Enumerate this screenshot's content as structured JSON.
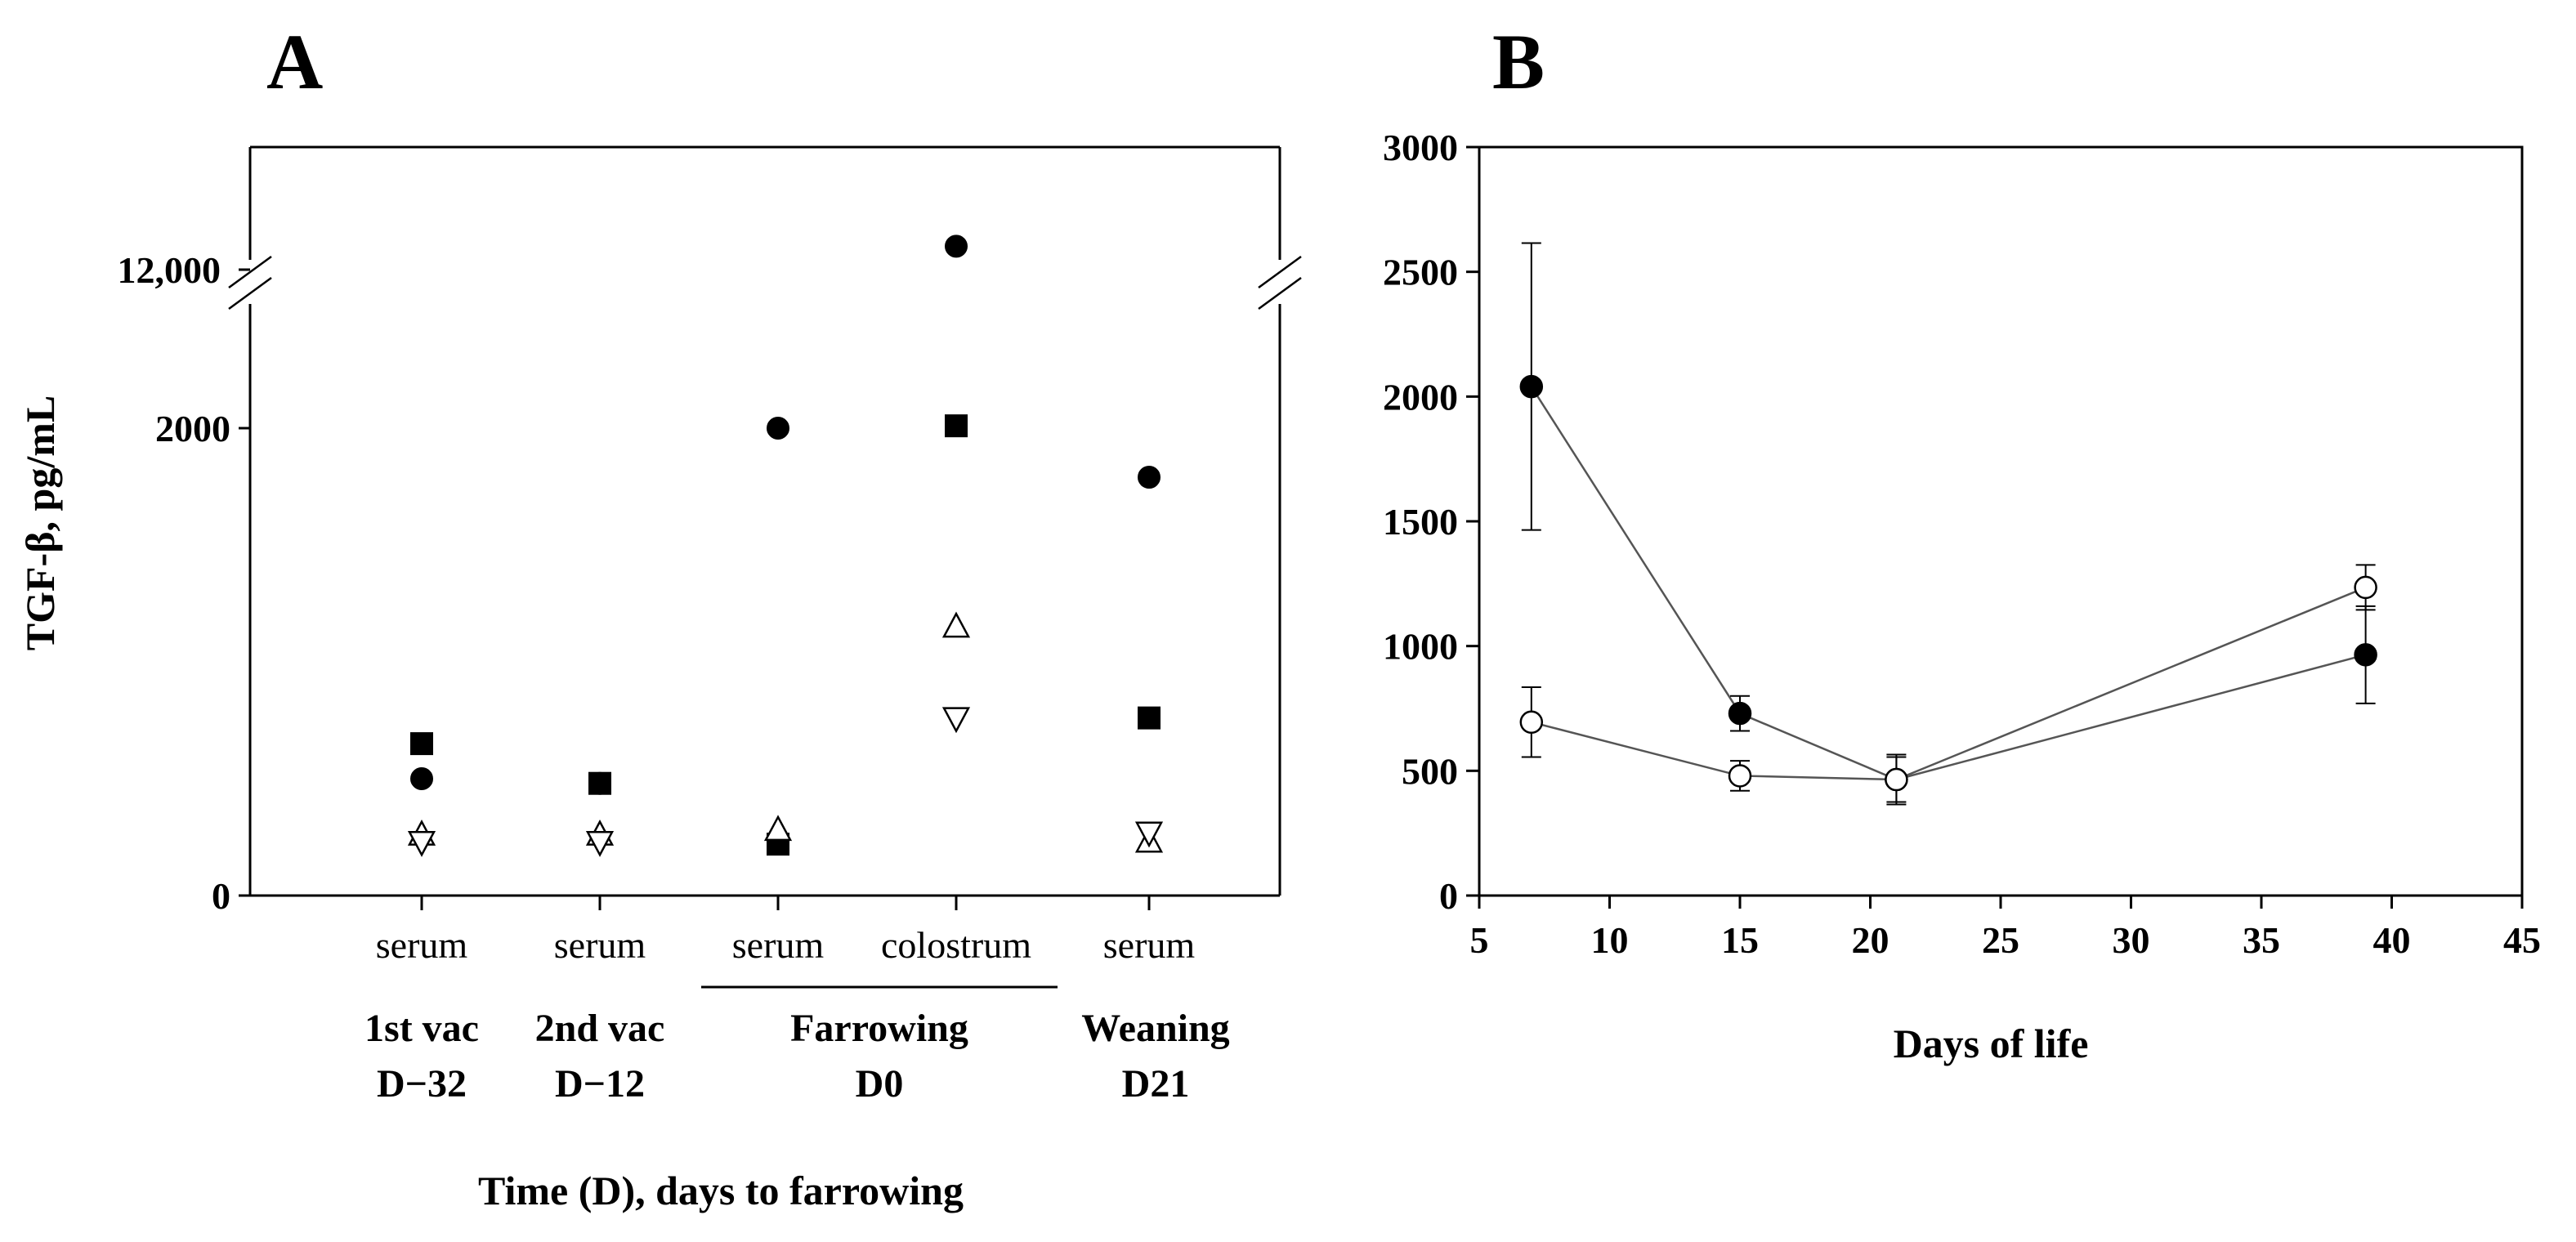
{
  "figure": {
    "panel_a_letter": "A",
    "panel_b_letter": "B"
  },
  "chart_data": [
    {
      "panel": "A",
      "type": "scatter",
      "title": "",
      "ylabel": "TGF-β, pg/mL",
      "xlabel": "Time (D), days to farrowing",
      "y_axis_break": true,
      "y_ticks": [
        {
          "value": 0,
          "label": "0"
        },
        {
          "value": 2000,
          "label": "2000"
        },
        {
          "value": 12000,
          "label": "12,000"
        }
      ],
      "categories": [
        {
          "sample": "serum",
          "group": "1st vac",
          "day": "D−32"
        },
        {
          "sample": "serum",
          "group": "2nd vac",
          "day": "D−12"
        },
        {
          "sample": "serum",
          "group": "Farrowing",
          "day": "D0"
        },
        {
          "sample": "colostrum",
          "group": "Farrowing",
          "day": "D0"
        },
        {
          "sample": "serum",
          "group": "Weaning",
          "day": "D21"
        }
      ],
      "series": [
        {
          "name": "filled-circle",
          "marker": "circle",
          "filled": true,
          "values": [
            500,
            480,
            2000,
            12400,
            1790
          ]
        },
        {
          "name": "filled-square",
          "marker": "square",
          "filled": true,
          "values": [
            650,
            480,
            220,
            2010,
            760
          ]
        },
        {
          "name": "open-triangle-up",
          "marker": "triangle-up",
          "filled": false,
          "values": [
            260,
            260,
            280,
            1150,
            230
          ]
        },
        {
          "name": "open-triangle-down",
          "marker": "triangle-down",
          "filled": false,
          "values": [
            230,
            230,
            null,
            760,
            270
          ]
        }
      ]
    },
    {
      "panel": "B",
      "type": "line",
      "title": "",
      "xlabel": "Days of life",
      "ylabel": "",
      "xlim": [
        5,
        45
      ],
      "ylim": [
        0,
        3000
      ],
      "x_ticks": [
        5,
        10,
        15,
        20,
        25,
        30,
        35,
        40,
        45
      ],
      "y_ticks": [
        0,
        500,
        1000,
        1500,
        2000,
        2500,
        3000
      ],
      "series": [
        {
          "name": "filled",
          "marker": "circle",
          "filled": true,
          "x": [
            7,
            15,
            21,
            39
          ],
          "y": [
            2040,
            730,
            465,
            965
          ],
          "err": [
            575,
            70,
            100,
            195
          ]
        },
        {
          "name": "open",
          "marker": "circle",
          "filled": false,
          "x": [
            7,
            15,
            21,
            39
          ],
          "y": [
            695,
            480,
            465,
            1235
          ],
          "err": [
            140,
            60,
            90,
            90
          ]
        }
      ]
    }
  ]
}
